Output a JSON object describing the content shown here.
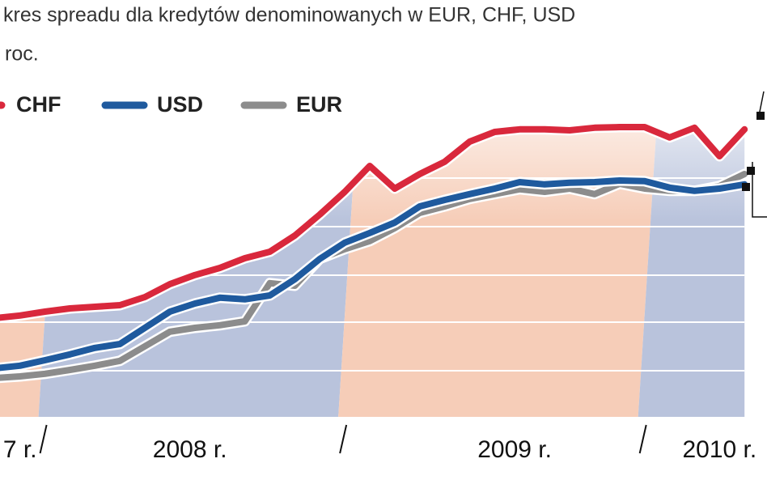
{
  "chart_data": {
    "type": "line",
    "title": "kres spreadu dla kredytów denominowanych w EUR, CHF, USD",
    "subtitle": "roc.",
    "x": [
      10,
      11,
      12,
      13,
      14,
      15,
      16,
      17,
      18,
      19,
      20,
      21,
      22,
      23,
      24,
      25,
      26,
      27,
      28,
      29,
      30,
      31,
      32,
      33,
      34,
      35,
      36,
      37,
      38,
      39,
      40
    ],
    "xlim": [
      10.2,
      40.9
    ],
    "xticks": [
      {
        "value": 11,
        "label": "7 r."
      },
      {
        "value": 17.8,
        "label": "2008 r."
      },
      {
        "value": 30.8,
        "label": "2009 r."
      },
      {
        "value": 39,
        "label": "2010 r."
      }
    ],
    "separators": [
      12,
      24,
      36
    ],
    "ylim": [
      0,
      100
    ],
    "grid_lines": [
      14.25,
      29.25,
      43.75,
      58.75,
      73.75
    ],
    "series": [
      {
        "name": "CHF",
        "color": "#d9283c",
        "values": [
          30.5,
          31.3,
          32.5,
          33.5,
          34,
          34.5,
          37,
          41,
          43.8,
          46,
          49,
          51,
          56,
          62.5,
          69.5,
          77.5,
          70.5,
          75,
          78.8,
          85,
          88,
          88.8,
          88.8,
          88.5,
          89.3,
          89.5,
          89.5,
          86.3,
          89.3,
          80.5,
          88.8
        ]
      },
      {
        "name": "USD",
        "color": "#1f5a9e",
        "values": [
          15,
          15.8,
          17.5,
          19.3,
          21.3,
          22.5,
          27.5,
          32.5,
          35,
          36.8,
          36.3,
          37.5,
          42.5,
          48.8,
          53.8,
          56.8,
          60,
          65,
          67,
          68.8,
          70.5,
          72.5,
          71.8,
          72.3,
          72.5,
          73,
          72.8,
          70.8,
          69.8,
          70.5,
          71.8
        ]
      },
      {
        "name": "EUR",
        "color": "#8c8c8c",
        "values": [
          12,
          12.5,
          13.3,
          14.5,
          15.8,
          17.3,
          21.8,
          26.3,
          27.5,
          28.3,
          29.5,
          41.3,
          40.5,
          48.8,
          51.8,
          54.3,
          58.3,
          63,
          65,
          67.3,
          68.8,
          70.3,
          69.5,
          70.5,
          68.8,
          72,
          70.5,
          69.8,
          69.8,
          71.3,
          75
        ]
      }
    ]
  }
}
